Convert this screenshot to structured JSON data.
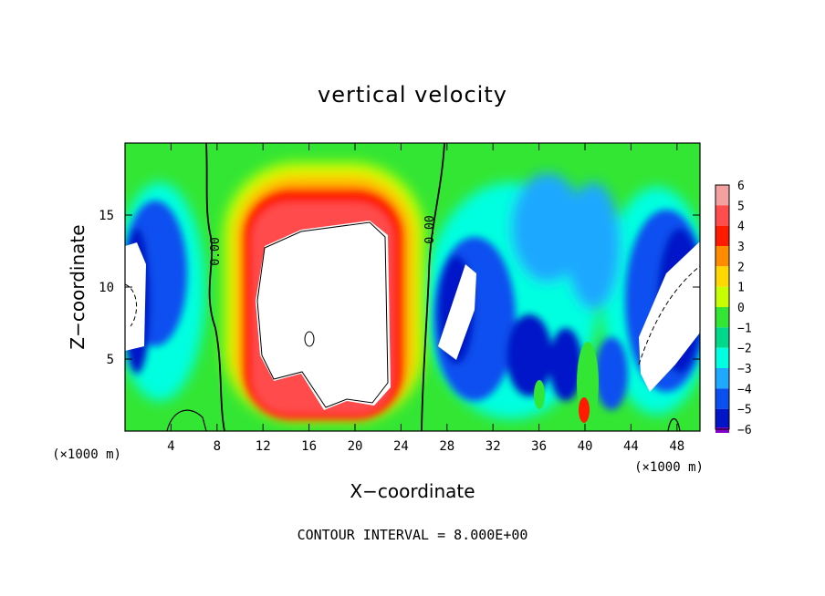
{
  "chart_data": {
    "type": "heatmap",
    "title": "vertical velocity",
    "xlabel": "X−coordinate",
    "ylabel": "Z−coordinate",
    "x_unit_left": "(×1000 m)",
    "x_unit_right": "(×1000 m)",
    "xlim": [
      0,
      50
    ],
    "ylim": [
      0,
      20
    ],
    "x_ticks": [
      4,
      8,
      12,
      16,
      20,
      24,
      28,
      32,
      36,
      40,
      44,
      48
    ],
    "y_ticks": [
      5,
      10,
      15
    ],
    "colorbar": {
      "levels": [
        "6",
        "5",
        "4",
        "3",
        "2",
        "1",
        "0",
        "−1",
        "−2",
        "−3",
        "−4",
        "−5",
        "−6"
      ],
      "colors": [
        "#f5a0a0",
        "#ff4c4c",
        "#ff1a00",
        "#ff8c00",
        "#ffd800",
        "#c8ff00",
        "#33e633",
        "#00d98c",
        "#00ffe0",
        "#1fa8ff",
        "#0a50f0",
        "#0014c8",
        "#8200c8"
      ]
    },
    "contour_labels": [
      "0.00",
      "0.00"
    ],
    "footer": "CONTOUR INTERVAL = 8.000E+00"
  }
}
